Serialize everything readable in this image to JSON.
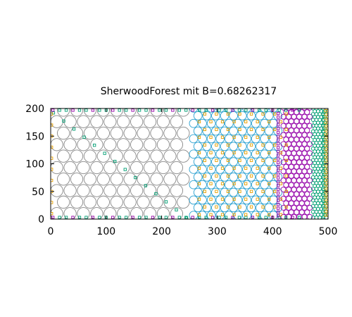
{
  "chart_data": {
    "type": "scatter",
    "title": "SherwoodForest mit B=0.68262317",
    "xlabel": "",
    "ylabel": "",
    "xlim": [
      0,
      500
    ],
    "ylim": [
      0,
      200
    ],
    "x_ticks": [
      "0",
      "100",
      "200",
      "300",
      "400",
      "500"
    ],
    "y_ticks": [
      "0",
      "50",
      "100",
      "150",
      "200"
    ],
    "grid": false,
    "marker_shape": "circle",
    "regions": [
      {
        "color": "#888888",
        "x_range": [
          0,
          250
        ],
        "circle_radius_data": 11,
        "spacing_data": 24
      },
      {
        "color": "#2aa0d0",
        "x_range": [
          250,
          415
        ],
        "circle_radius_data": 7.5,
        "spacing_data": 16
      },
      {
        "color": "#9400a8",
        "x_range": [
          415,
          470
        ],
        "circle_radius_data": 4.5,
        "spacing_data": 9.5
      },
      {
        "color": "#009e73",
        "x_range": [
          470,
          500
        ],
        "circle_radius_data": 3,
        "spacing_data": 6
      }
    ],
    "small_square_markers": [
      {
        "color": "#009e73",
        "description": "diagonal line from top-left to bottom-middle, plus ring at top/bottom edges"
      },
      {
        "color": "#e69f00",
        "description": "interstitial markers in the blue region and left/right edges"
      },
      {
        "color": "#9400a8",
        "description": "edge markers along top and bottom borders"
      }
    ],
    "colors": {
      "gray": "#888888",
      "blue": "#2aa0d0",
      "purple": "#9400a8",
      "green": "#009e73",
      "orange": "#e69f00"
    }
  }
}
